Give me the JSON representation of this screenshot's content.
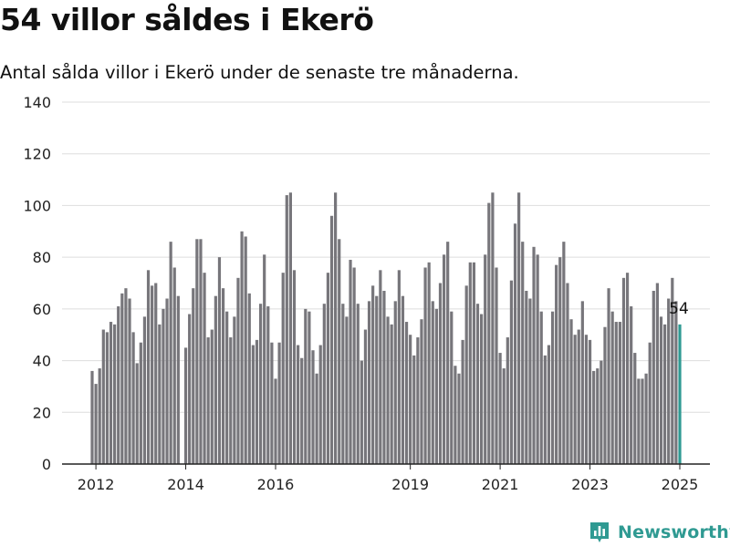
{
  "title": "54 villor såldes i Ekerö",
  "subtitle": "Antal sålda villor i Ekerö under de senaste tre månaderna.",
  "brand": {
    "name": "Newsworthy",
    "icon": "bar-chart-logo-icon",
    "color": "#2f9a92"
  },
  "colors": {
    "bar": "#77767b",
    "highlight": "#2f9a92",
    "grid": "#dddddd",
    "axis": "#222222"
  },
  "chart_data": {
    "type": "bar",
    "title": "54 villor såldes i Ekerö",
    "xlabel": "",
    "ylabel": "",
    "ylim": [
      0,
      140
    ],
    "yticks": [
      0,
      20,
      40,
      60,
      80,
      100,
      120,
      140
    ],
    "xtick_labels": [
      "2012",
      "2014",
      "2016",
      "2019",
      "2021",
      "2023",
      "2025"
    ],
    "xtick_dates": [
      "2012-01",
      "2014-01",
      "2016-01",
      "2019-01",
      "2021-01",
      "2023-01",
      "2025-01"
    ],
    "grid": true,
    "x_start": "2011-12",
    "x_end": "2025-01",
    "highlight_index": 157,
    "highlight_label": "54",
    "values": [
      36,
      31,
      37,
      52,
      51,
      55,
      54,
      61,
      66,
      68,
      64,
      51,
      39,
      47,
      57,
      75,
      69,
      70,
      54,
      60,
      64,
      86,
      76,
      65,
      0,
      45,
      58,
      68,
      87,
      87,
      74,
      49,
      52,
      65,
      80,
      68,
      59,
      49,
      57,
      72,
      90,
      88,
      66,
      46,
      48,
      62,
      81,
      61,
      47,
      33,
      47,
      74,
      104,
      105,
      75,
      46,
      41,
      60,
      59,
      44,
      35,
      46,
      62,
      74,
      96,
      105,
      87,
      62,
      57,
      79,
      76,
      62,
      40,
      52,
      63,
      69,
      65,
      75,
      67,
      57,
      54,
      63,
      75,
      65,
      55,
      50,
      42,
      49,
      56,
      76,
      78,
      63,
      60,
      70,
      81,
      86,
      59,
      38,
      35,
      48,
      69,
      78,
      78,
      62,
      58,
      81,
      101,
      105,
      76,
      43,
      37,
      49,
      71,
      93,
      105,
      86,
      67,
      64,
      84,
      81,
      59,
      42,
      46,
      59,
      77,
      80,
      86,
      70,
      56,
      50,
      52,
      63,
      50,
      48,
      36,
      37,
      40,
      53,
      68,
      59,
      55,
      55,
      72,
      74,
      61,
      43,
      33,
      33,
      35,
      47,
      67,
      70,
      57,
      54,
      64,
      72,
      63,
      54
    ]
  }
}
